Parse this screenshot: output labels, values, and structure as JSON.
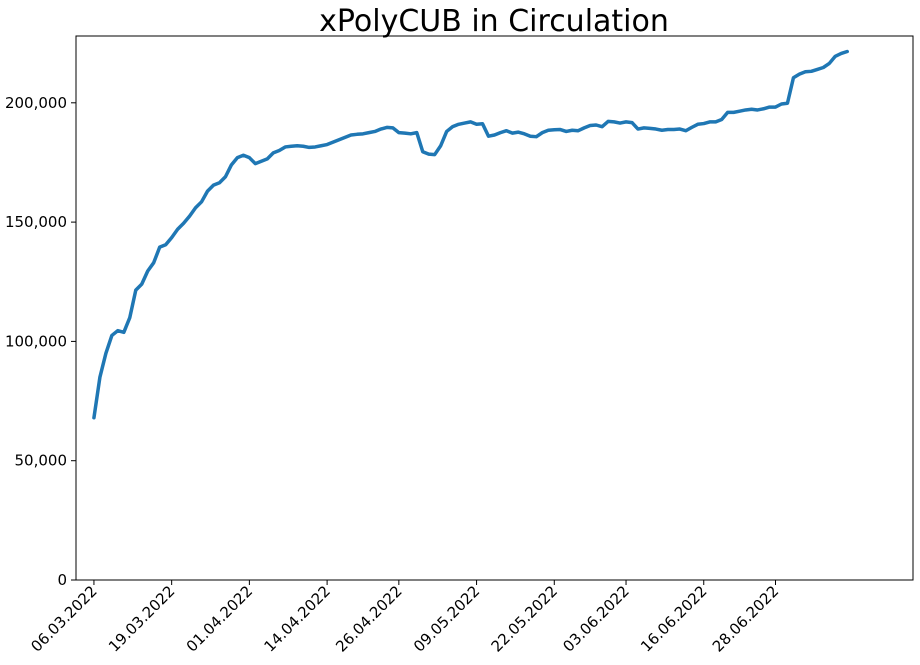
{
  "chart_data": {
    "type": "line",
    "title": "xPolyCUB in Circulation",
    "xlabel": "",
    "ylabel": "",
    "x_start": "06.03.2022",
    "x_end": "15.07.2022",
    "xlim": [
      "03.03.2022",
      "21.07.2022"
    ],
    "ylim": [
      0,
      228000
    ],
    "grid": false,
    "x_ticks": [
      {
        "date": "06.03.2022",
        "label": "06.03.2022"
      },
      {
        "date": "19.03.2022",
        "label": "19.03.2022"
      },
      {
        "date": "01.04.2022",
        "label": "01.04.2022"
      },
      {
        "date": "14.04.2022",
        "label": "14.04.2022"
      },
      {
        "date": "26.04.2022",
        "label": "26.04.2022"
      },
      {
        "date": "09.05.2022",
        "label": "09.05.2022"
      },
      {
        "date": "22.05.2022",
        "label": "22.05.2022"
      },
      {
        "date": "03.06.2022",
        "label": "03.06.2022"
      },
      {
        "date": "16.06.2022",
        "label": "16.06.2022"
      },
      {
        "date": "28.06.2022",
        "label": "28.06.2022"
      }
    ],
    "y_ticks": [
      {
        "value": 0,
        "label": "0"
      },
      {
        "value": 50000,
        "label": "50,000"
      },
      {
        "value": 100000,
        "label": "100,000"
      },
      {
        "value": 150000,
        "label": "150,000"
      },
      {
        "value": 200000,
        "label": "200,000"
      }
    ],
    "series": [
      {
        "color": "#1f77b4",
        "values": [
          68000,
          85000,
          95000,
          102500,
          104500,
          103800,
          110000,
          121500,
          124000,
          129500,
          133000,
          139500,
          140500,
          143500,
          147000,
          149500,
          152500,
          156000,
          158500,
          163000,
          165500,
          166500,
          169000,
          174000,
          177000,
          178000,
          177000,
          174500,
          175500,
          176500,
          179000,
          180000,
          181500,
          181800,
          182000,
          181800,
          181300,
          181500,
          182000,
          182500,
          183500,
          184500,
          185500,
          186500,
          186800,
          187000,
          187500,
          188000,
          189000,
          189700,
          189500,
          187500,
          187300,
          187000,
          187500,
          179500,
          178500,
          178300,
          182000,
          188000,
          190000,
          191000,
          191500,
          192000,
          191000,
          191200,
          186000,
          186500,
          187500,
          188300,
          187300,
          187700,
          187000,
          186000,
          185800,
          187500,
          188500,
          188700,
          188800,
          188000,
          188500,
          188300,
          189500,
          190500,
          190700,
          190000,
          192200,
          192000,
          191500,
          192000,
          191700,
          189000,
          189500,
          189300,
          189000,
          188500,
          188800,
          188800,
          189000,
          188300,
          189700,
          191000,
          191300,
          192000,
          192000,
          193000,
          196000,
          196000,
          196500,
          197000,
          197300,
          197000,
          197500,
          198200,
          198200,
          199500,
          199800,
          210500,
          212000,
          213000,
          213200,
          214000,
          214800,
          216500,
          219500,
          220700,
          221500
        ]
      }
    ]
  }
}
